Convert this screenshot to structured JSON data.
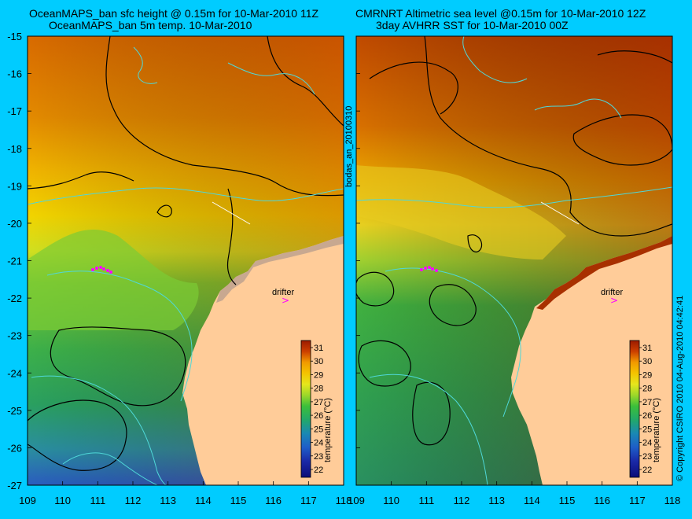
{
  "left_panel": {
    "title_line1": "OceanMAPS_ban sfc height @ 0.15m for 10-Mar-2010 11Z",
    "title_line2": "OceanMAPS_ban 5m temp. 10-Mar-2010",
    "drifter_label": "drifter"
  },
  "right_panel": {
    "title_line1": "CMRNRT Altimetric sea level  @0.15m  for 10-Mar-2010 12Z",
    "title_line2": "3day AVHRR SST for 10-Mar-2010 00Z",
    "drifter_label": "drifter"
  },
  "side_label": "bodas_an_20100310",
  "copyright": "© Copyright CSIRO 2010   04-Aug-2010 04:42:41",
  "axes": {
    "lon_ticks": [
      "109",
      "110",
      "111",
      "112",
      "113",
      "114",
      "115",
      "116",
      "117",
      "118"
    ],
    "lat_ticks": [
      "-15",
      "-16",
      "-17",
      "-18",
      "-19",
      "-20",
      "-21",
      "-22",
      "-23",
      "-24",
      "-25",
      "-26",
      "-27"
    ]
  },
  "colorbar": {
    "label": "temperature (°C)",
    "ticks": [
      "31",
      "30",
      "29",
      "28",
      "27",
      "26",
      "25",
      "24",
      "23",
      "22"
    ],
    "colors": [
      "#9b1b00",
      "#cc3f00",
      "#e86b00",
      "#f29a00",
      "#f4c400",
      "#e6e61c",
      "#9cd82a",
      "#3cbf3a",
      "#22a86a",
      "#1a88b4",
      "#1e5ec8",
      "#1a2aa8",
      "#0c0c78"
    ]
  },
  "colors": {
    "background": "#00ccff",
    "land": "#ffcc99",
    "contour_black": "#000000",
    "contour_cyan": "#4fd8d8",
    "drifter_marker": "#ff00ff"
  }
}
